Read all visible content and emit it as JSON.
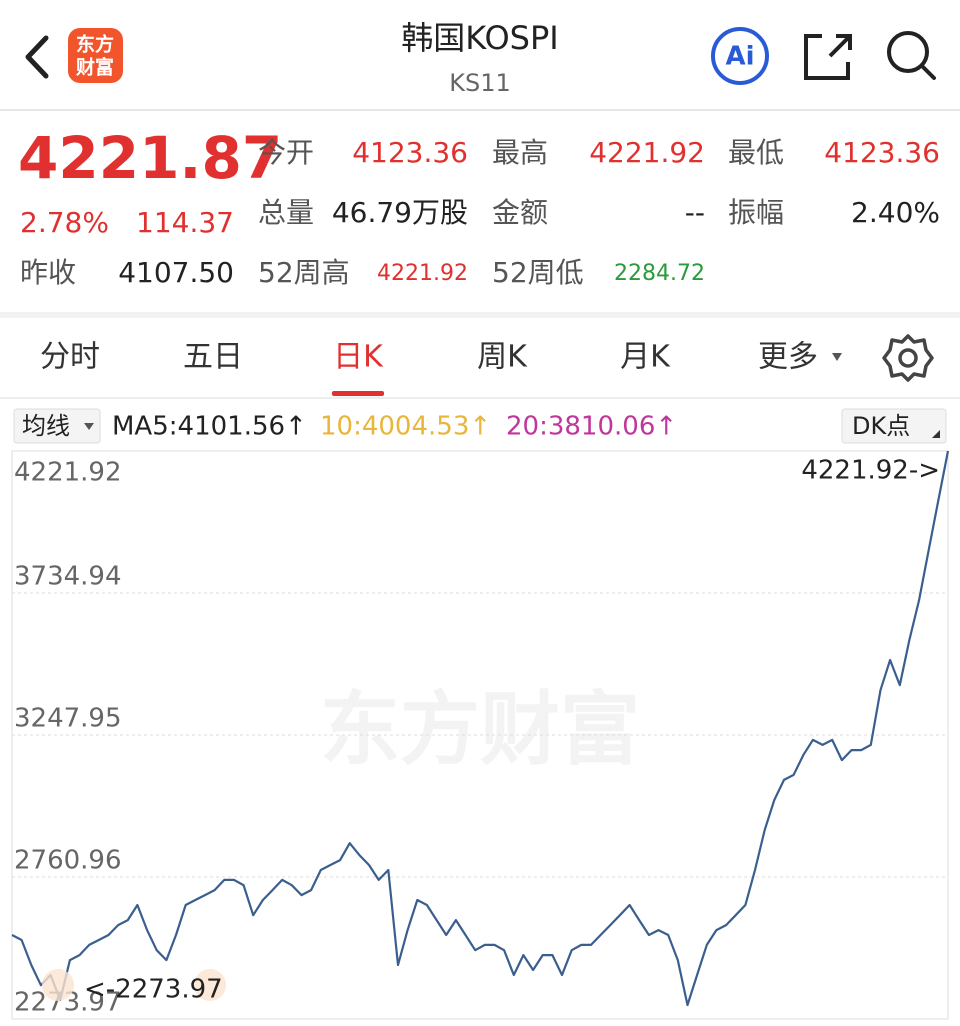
{
  "header": {
    "logo": [
      "东方",
      "财富"
    ],
    "title": "韩国KOSPI",
    "code": "KS11",
    "ai": "Ai"
  },
  "quote": {
    "price": "4221.87",
    "change_pct": "2.78%",
    "change": "114.37",
    "prev_close_label": "昨收",
    "prev_close": "4107.50",
    "fields": [
      [
        {
          "label": "今开",
          "value": "4123.36"
        },
        {
          "label": "最高",
          "value": "4221.92"
        },
        {
          "label": "最低",
          "value": "4123.36"
        }
      ],
      [
        {
          "label": "总量",
          "value": "46.79万股"
        },
        {
          "label": "金额",
          "value": "--"
        },
        {
          "label": "振幅",
          "value": "2.40%"
        }
      ],
      [
        {
          "label": "52周高",
          "value": "4221.92"
        },
        {
          "label": "52周低",
          "value": "2284.72"
        }
      ]
    ]
  },
  "tabs": [
    "分时",
    "五日",
    "日K",
    "周K",
    "月K",
    "更多"
  ],
  "ma_bar": {
    "selector": "均线",
    "ma5": "MA5:4101.56↑",
    "ma10": "10:4004.53↑",
    "ma20": "20:3810.06↑",
    "dk": "DK点"
  },
  "chart_data": {
    "type": "line",
    "watermark": "东方财富",
    "max_label": "4221.92->",
    "min_label": "<-2273.97",
    "color": "#3a5f8f",
    "ylim": [
      2273.97,
      4221.92
    ],
    "yticks": [
      2273.97,
      2760.96,
      3247.95,
      3734.94,
      4221.92
    ],
    "grid": true,
    "values": [
      2562,
      2545,
      2459,
      2390,
      2425,
      2339,
      2476,
      2493,
      2528,
      2545,
      2562,
      2596,
      2613,
      2665,
      2579,
      2510,
      2476,
      2562,
      2665,
      2682,
      2699,
      2716,
      2751,
      2751,
      2733,
      2630,
      2682,
      2716,
      2751,
      2733,
      2699,
      2716,
      2785,
      2802,
      2819,
      2877,
      2836,
      2802,
      2751,
      2785,
      2459,
      2579,
      2682,
      2665,
      2613,
      2562,
      2613,
      2562,
      2510,
      2528,
      2528,
      2510,
      2425,
      2493,
      2442,
      2493,
      2493,
      2425,
      2510,
      2528,
      2528,
      2562,
      2596,
      2630,
      2665,
      2613,
      2562,
      2579,
      2562,
      2476,
      2322,
      2425,
      2528,
      2579,
      2596,
      2630,
      2665,
      2785,
      2922,
      3025,
      3094,
      3111,
      3179,
      3231,
      3214,
      3231,
      3162,
      3196,
      3196,
      3214,
      3402,
      3505,
      3419,
      3574,
      3711,
      3882,
      4054,
      4221.87
    ]
  }
}
